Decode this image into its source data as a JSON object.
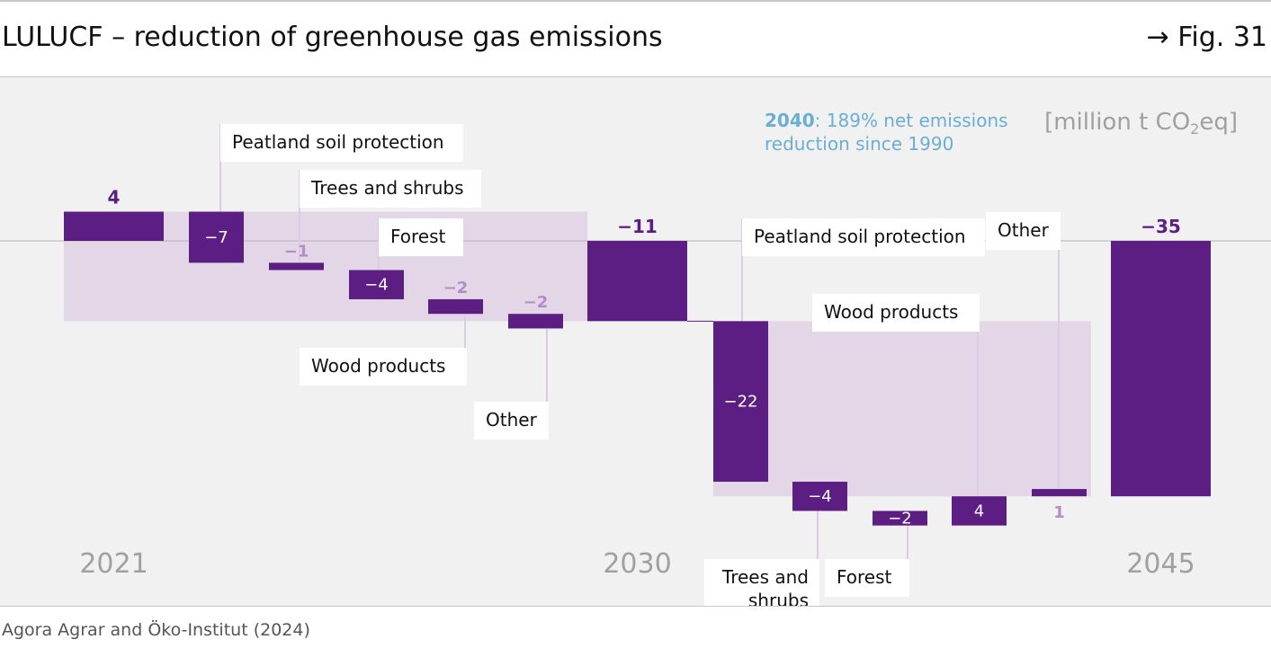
{
  "header": {
    "title": "LULUCF – reduction of greenhouse gas emissions",
    "figure_ref": "→ Fig. 31"
  },
  "source": "Agora Agrar and Öko-Institut (2024)",
  "colors": {
    "bar": "#5c1e82",
    "band": "#e3d6e6",
    "leader": "#dccbe2",
    "muted_label": "#b48cc8",
    "note": "#6aaed6",
    "axis_text": "#a0a0a0",
    "background": "#f1f1f1"
  },
  "chart_data": {
    "type": "waterfall",
    "unit": "[million t CO₂eq]",
    "unit_parts": [
      "[million t CO",
      "2",
      "eq]"
    ],
    "annotation": {
      "year": "2040",
      "text_line1": ": 189% net emissions",
      "text_line2": "reduction since 1990"
    },
    "period_labels": [
      "2021",
      "2030",
      "2045"
    ],
    "steps": [
      {
        "category": "2021",
        "kind": "total",
        "value": 4,
        "label": "4",
        "label_style": "bold-dark"
      },
      {
        "category": "Peatland soil protection",
        "kind": "delta",
        "value": -7,
        "label": "−7",
        "label_style": "inside"
      },
      {
        "category": "Trees and shrubs",
        "kind": "delta",
        "value": -1,
        "label": "−1",
        "label_style": "muted"
      },
      {
        "category": "Forest",
        "kind": "delta",
        "value": -4,
        "label": "−4",
        "label_style": "inside"
      },
      {
        "category": "Wood products",
        "kind": "delta",
        "value": -2,
        "label": "−2",
        "label_style": "muted"
      },
      {
        "category": "Other",
        "kind": "delta",
        "value": -2,
        "label": "−2",
        "label_style": "muted"
      },
      {
        "category": "2030",
        "kind": "total",
        "value": -11,
        "label": "−11",
        "label_style": "bold-dark"
      },
      {
        "category": "Peatland soil protection",
        "kind": "delta",
        "value": -22,
        "label": "−22",
        "label_style": "inside"
      },
      {
        "category": "Trees and shrubs",
        "kind": "delta",
        "value": -4,
        "label": "−4",
        "label_style": "inside"
      },
      {
        "category": "Forest",
        "kind": "delta",
        "value": -2,
        "label": "−2",
        "label_style": "inside"
      },
      {
        "category": "Wood products",
        "kind": "delta",
        "value": 4,
        "label": "4",
        "label_style": "inside"
      },
      {
        "category": "Other",
        "kind": "delta",
        "value": 1,
        "label": "1",
        "label_style": "muted"
      },
      {
        "category": "2045",
        "kind": "total",
        "value": -35,
        "label": "−35",
        "label_style": "bold-dark"
      }
    ],
    "category_callouts": [
      {
        "step": 1,
        "lines": [
          "Peatland soil protection"
        ],
        "side": "above",
        "tier": 0
      },
      {
        "step": 2,
        "lines": [
          "Trees and shrubs"
        ],
        "side": "above",
        "tier": 1
      },
      {
        "step": 3,
        "lines": [
          "Forest"
        ],
        "side": "above",
        "tier": 2
      },
      {
        "step": 4,
        "lines": [
          "Wood products"
        ],
        "side": "below",
        "tier": 0
      },
      {
        "step": 5,
        "lines": [
          "Other"
        ],
        "side": "below",
        "tier": 1
      },
      {
        "step": 7,
        "lines": [
          "Peatland soil protection"
        ],
        "side": "above",
        "tier": 2
      },
      {
        "step": 8,
        "lines": [
          "Trees and",
          "shrubs"
        ],
        "side": "below",
        "tier": 2
      },
      {
        "step": 9,
        "lines": [
          "Forest"
        ],
        "side": "below",
        "tier": 2
      },
      {
        "step": 10,
        "lines": [
          "Wood products"
        ],
        "side": "above",
        "tier": 4
      },
      {
        "step": 11,
        "lines": [
          "Other"
        ],
        "side": "above",
        "tier": 3
      }
    ]
  }
}
